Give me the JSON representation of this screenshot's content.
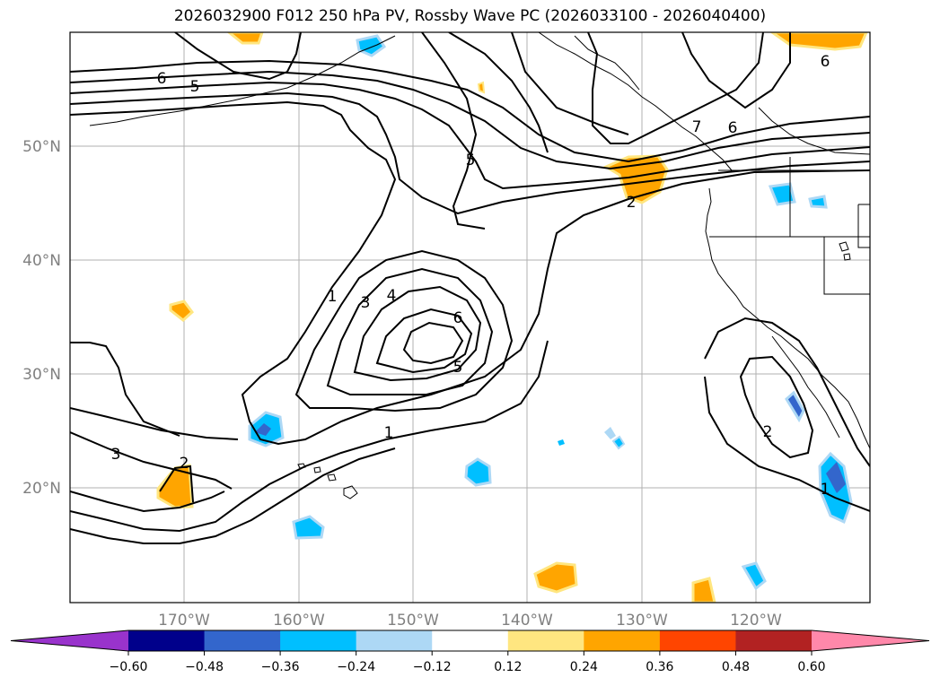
{
  "title": "2026032900 F012 250 hPa PV, Rossby Wave PC (2026033100 - 2026040400)",
  "map": {
    "lat_labels": [
      "50°N",
      "40°N",
      "30°N",
      "20°N"
    ],
    "lon_labels": [
      "170°W",
      "160°W",
      "150°W",
      "140°W",
      "130°W",
      "120°W"
    ],
    "contour_labels": [
      "6",
      "5",
      "7",
      "6",
      "6",
      "5",
      "1",
      "3",
      "4",
      "6",
      "5",
      "1",
      "3",
      "2",
      "2",
      "2",
      "1"
    ]
  },
  "colorbar": {
    "ticks": [
      "−0.60",
      "−0.48",
      "−0.36",
      "−0.24",
      "−0.12",
      "0.12",
      "0.24",
      "0.36",
      "0.48",
      "0.60"
    ],
    "colors": [
      "#9933cc",
      "#00008b",
      "#3366cc",
      "#00bfff",
      "#add8f5",
      "#ffffff",
      "#ffe680",
      "#ffa500",
      "#ff4500",
      "#b22222",
      "#ff88aa"
    ]
  }
}
